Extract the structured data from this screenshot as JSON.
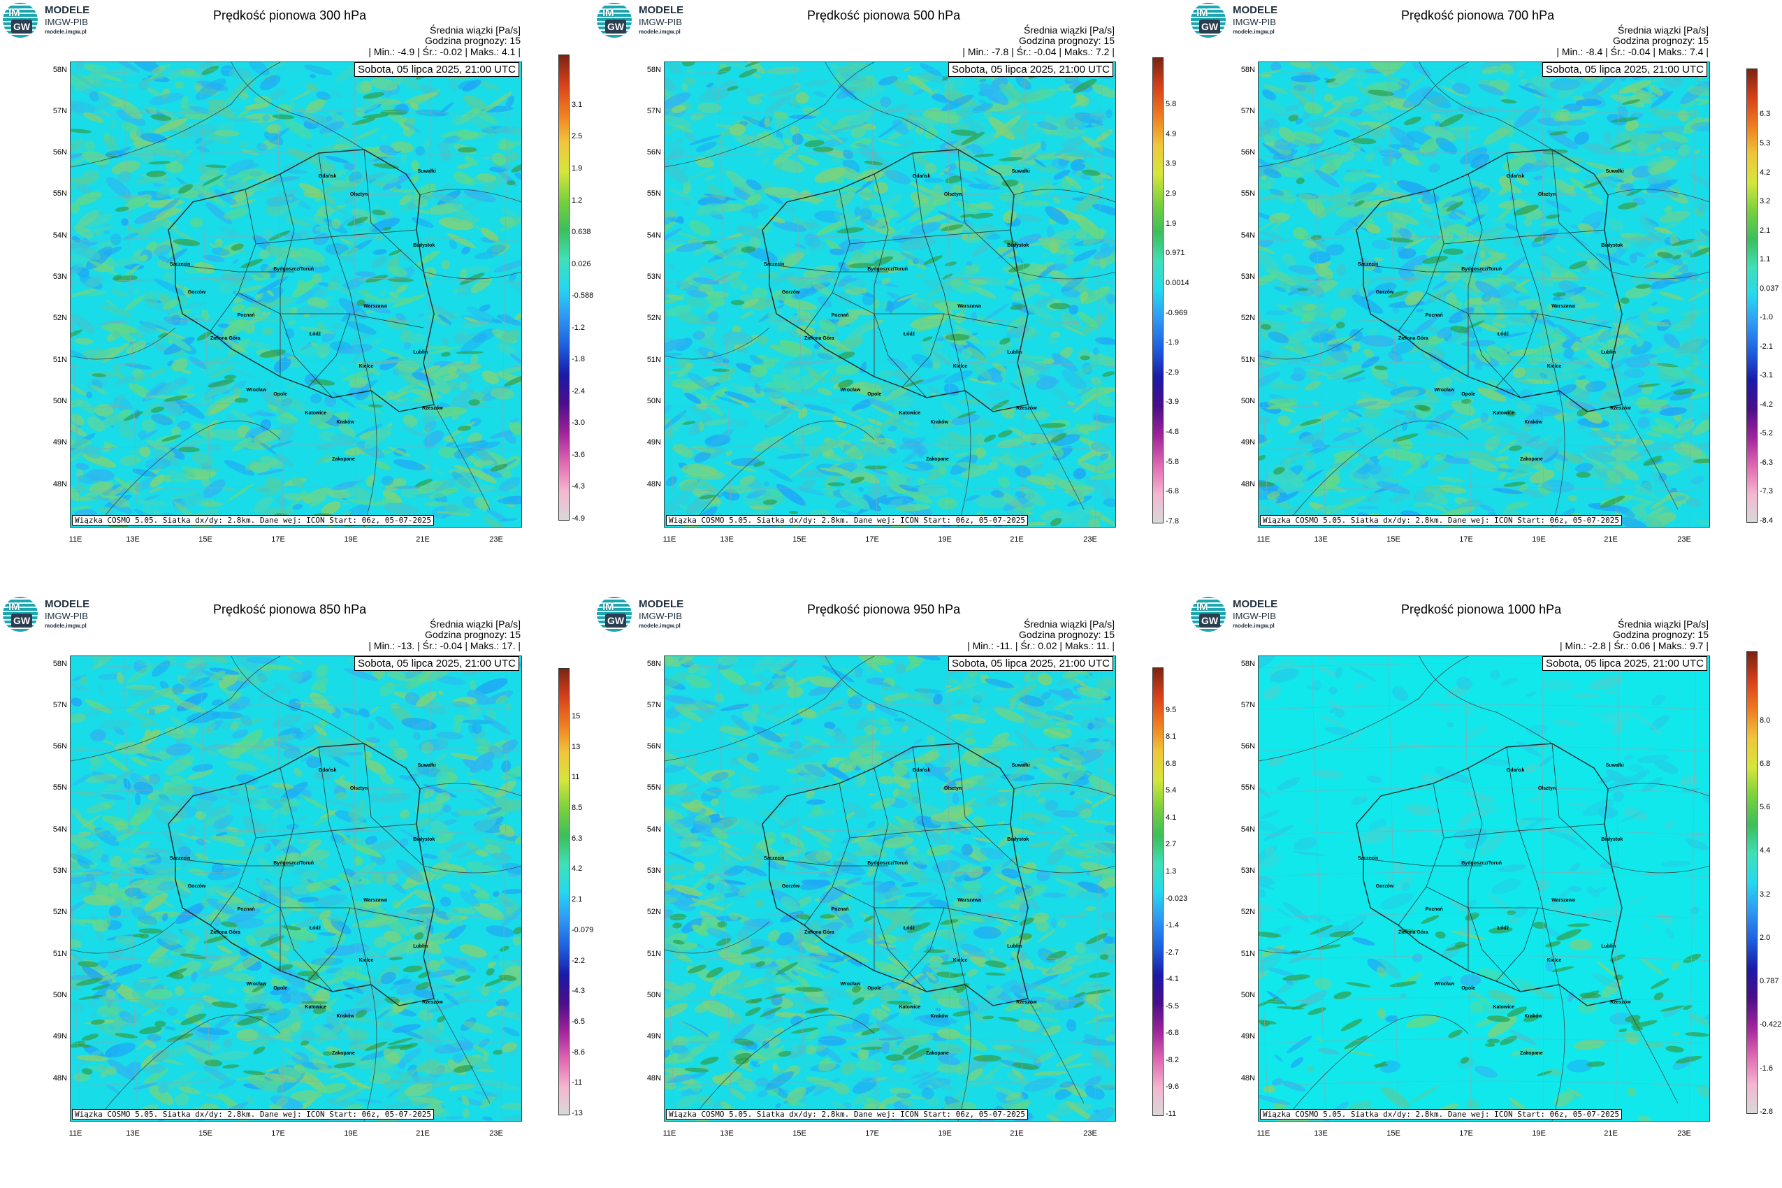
{
  "logo": {
    "name": "MODELE",
    "sub": "IMGW-PIB",
    "url": "modele.imgw.pl",
    "im": "IM",
    "gw": "GW"
  },
  "common": {
    "units_label": "Średnia wiązki [Pa/s]",
    "forecast_hour": "Godzina prognozy: 15",
    "date_label": "Sobota, 05 lipca 2025, 21:00 UTC",
    "credit": "Wiązka COSMO 5.05. Siatka dx/dy: 2.8km. Dane wej: ICON Start: 06z, 05-07-2025",
    "lat_labels": [
      "58N",
      "57N",
      "56N",
      "55N",
      "54N",
      "53N",
      "52N",
      "51N",
      "50N",
      "49N",
      "48N"
    ],
    "lon_labels": [
      "11E",
      "13E",
      "15E",
      "17E",
      "19E",
      "21E",
      "23E"
    ]
  },
  "cities": [
    "Gdańsk",
    "Olsztyn",
    "Suwałki",
    "Szczecin",
    "Białystok",
    "Bydgoszcz/Toruń",
    "Gorzów",
    "Poznań",
    "Warszawa",
    "Zielona Góra",
    "Łódź",
    "Lublin",
    "Wrocław",
    "Kielce",
    "Opole",
    "Katowice",
    "Kraków",
    "Rzeszów",
    "Zakopane"
  ],
  "panels": [
    {
      "title": "Prędkość pionowa 300 hPa",
      "stats": "| Min.: -4.9 | Śr.: -0.02 | Maks.: 4.1 |",
      "colorbar_labels": [
        "3.1",
        "2.5",
        "1.9",
        "1.2",
        "0.638",
        "0.026",
        "-0.588",
        "-1.2",
        "-1.8",
        "-2.4",
        "-3.0",
        "-3.6",
        "-4.3",
        "-4.9"
      ]
    },
    {
      "title": "Prędkość pionowa 500 hPa",
      "stats": "| Min.: -7.8 | Śr.: -0.04 | Maks.: 7.2 |",
      "colorbar_labels": [
        "5.8",
        "4.9",
        "3.9",
        "2.9",
        "1.9",
        "0.971",
        "0.0014",
        "-0.969",
        "-1.9",
        "-2.9",
        "-3.9",
        "-4.8",
        "-5.8",
        "-6.8",
        "-7.8"
      ]
    },
    {
      "title": "Prędkość pionowa 700 hPa",
      "stats": "| Min.: -8.4 | Śr.: -0.04 | Maks.: 7.4 |",
      "colorbar_labels": [
        "6.3",
        "5.3",
        "4.2",
        "3.2",
        "2.1",
        "1.1",
        "0.037",
        "-1.0",
        "-2.1",
        "-3.1",
        "-4.2",
        "-5.2",
        "-6.3",
        "-7.3",
        "-8.4"
      ]
    },
    {
      "title": "Prędkość pionowa 850 hPa",
      "stats": "| Min.: -13. | Śr.: -0.04 | Maks.: 17. |",
      "colorbar_labels": [
        "15",
        "13",
        "11",
        "8.5",
        "6.3",
        "4.2",
        "2.1",
        "-0.079",
        "-2.2",
        "-4.3",
        "-6.5",
        "-8.6",
        "-11",
        "-13"
      ]
    },
    {
      "title": "Prędkość pionowa 950 hPa",
      "stats": "| Min.: -11. | Śr.: 0.02 | Maks.: 11. |",
      "colorbar_labels": [
        "9.5",
        "8.1",
        "6.8",
        "5.4",
        "4.1",
        "2.7",
        "1.3",
        "-0.023",
        "-1.4",
        "-2.7",
        "-4.1",
        "-5.5",
        "-6.8",
        "-8.2",
        "-9.6",
        "-11"
      ]
    },
    {
      "title": "Prędkość pionowa 1000 hPa",
      "stats": "| Min.: -2.8 | Śr.: 0.06 | Maks.: 9.7 |",
      "colorbar_labels": [
        "8.0",
        "6.8",
        "5.6",
        "4.4",
        "3.2",
        "2.0",
        "0.787",
        "-0.422",
        "-1.6",
        "-2.8"
      ]
    }
  ]
}
